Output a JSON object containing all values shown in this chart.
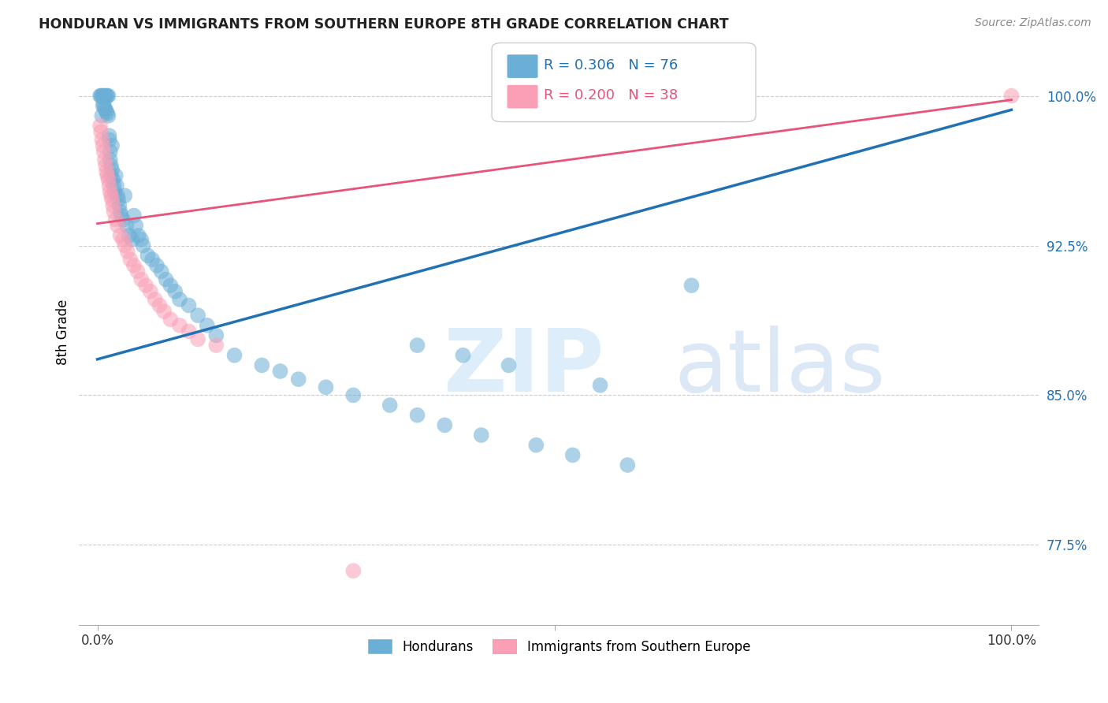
{
  "title": "HONDURAN VS IMMIGRANTS FROM SOUTHERN EUROPE 8TH GRADE CORRELATION CHART",
  "source": "Source: ZipAtlas.com",
  "ylabel": "8th Grade",
  "legend_label1": "Hondurans",
  "legend_label2": "Immigrants from Southern Europe",
  "blue_color": "#6baed6",
  "pink_color": "#fa9fb5",
  "blue_line_color": "#2171b5",
  "pink_line_color": "#e8537a",
  "blue_r": "R = 0.306",
  "blue_n": "N = 76",
  "pink_r": "R = 0.200",
  "pink_n": "N = 38",
  "blue_intercept": 0.868,
  "blue_slope": 0.125,
  "pink_intercept": 0.936,
  "pink_slope": 0.062,
  "blue_x": [
    0.003,
    0.004,
    0.005,
    0.005,
    0.006,
    0.006,
    0.007,
    0.007,
    0.008,
    0.008,
    0.009,
    0.009,
    0.01,
    0.01,
    0.011,
    0.011,
    0.012,
    0.012,
    0.013,
    0.013,
    0.014,
    0.014,
    0.015,
    0.015,
    0.016,
    0.016,
    0.017,
    0.018,
    0.019,
    0.02,
    0.021,
    0.022,
    0.023,
    0.024,
    0.025,
    0.026,
    0.028,
    0.03,
    0.032,
    0.035,
    0.038,
    0.04,
    0.042,
    0.045,
    0.048,
    0.05,
    0.055,
    0.06,
    0.065,
    0.07,
    0.075,
    0.08,
    0.085,
    0.09,
    0.1,
    0.11,
    0.12,
    0.13,
    0.15,
    0.18,
    0.2,
    0.22,
    0.25,
    0.28,
    0.32,
    0.35,
    0.38,
    0.42,
    0.48,
    0.52,
    0.58,
    0.35,
    0.4,
    0.45,
    0.55,
    0.65
  ],
  "blue_y": [
    1.0,
    1.0,
    1.0,
    0.99,
    1.0,
    0.995,
    1.0,
    0.996,
    1.0,
    0.994,
    1.0,
    0.993,
    1.0,
    0.992,
    1.0,
    0.991,
    1.0,
    0.99,
    0.978,
    0.98,
    0.972,
    0.968,
    0.965,
    0.96,
    0.975,
    0.963,
    0.958,
    0.955,
    0.952,
    0.96,
    0.955,
    0.95,
    0.948,
    0.945,
    0.942,
    0.94,
    0.938,
    0.95,
    0.935,
    0.93,
    0.928,
    0.94,
    0.935,
    0.93,
    0.928,
    0.925,
    0.92,
    0.918,
    0.915,
    0.912,
    0.908,
    0.905,
    0.902,
    0.898,
    0.895,
    0.89,
    0.885,
    0.88,
    0.87,
    0.865,
    0.862,
    0.858,
    0.854,
    0.85,
    0.845,
    0.84,
    0.835,
    0.83,
    0.825,
    0.82,
    0.815,
    0.875,
    0.87,
    0.865,
    0.855,
    0.905
  ],
  "pink_x": [
    0.003,
    0.004,
    0.005,
    0.006,
    0.007,
    0.008,
    0.009,
    0.01,
    0.011,
    0.012,
    0.013,
    0.014,
    0.015,
    0.016,
    0.017,
    0.018,
    0.02,
    0.022,
    0.025,
    0.028,
    0.03,
    0.033,
    0.036,
    0.04,
    0.044,
    0.048,
    0.053,
    0.058,
    0.063,
    0.068,
    0.073,
    0.08,
    0.09,
    0.1,
    0.11,
    0.13,
    0.28,
    1.0
  ],
  "pink_y": [
    0.985,
    0.982,
    0.978,
    0.975,
    0.972,
    0.968,
    0.965,
    0.962,
    0.96,
    0.958,
    0.955,
    0.952,
    0.95,
    0.948,
    0.945,
    0.942,
    0.938,
    0.935,
    0.93,
    0.928,
    0.925,
    0.922,
    0.918,
    0.915,
    0.912,
    0.908,
    0.905,
    0.902,
    0.898,
    0.895,
    0.892,
    0.888,
    0.885,
    0.882,
    0.878,
    0.875,
    0.762,
    1.0
  ]
}
